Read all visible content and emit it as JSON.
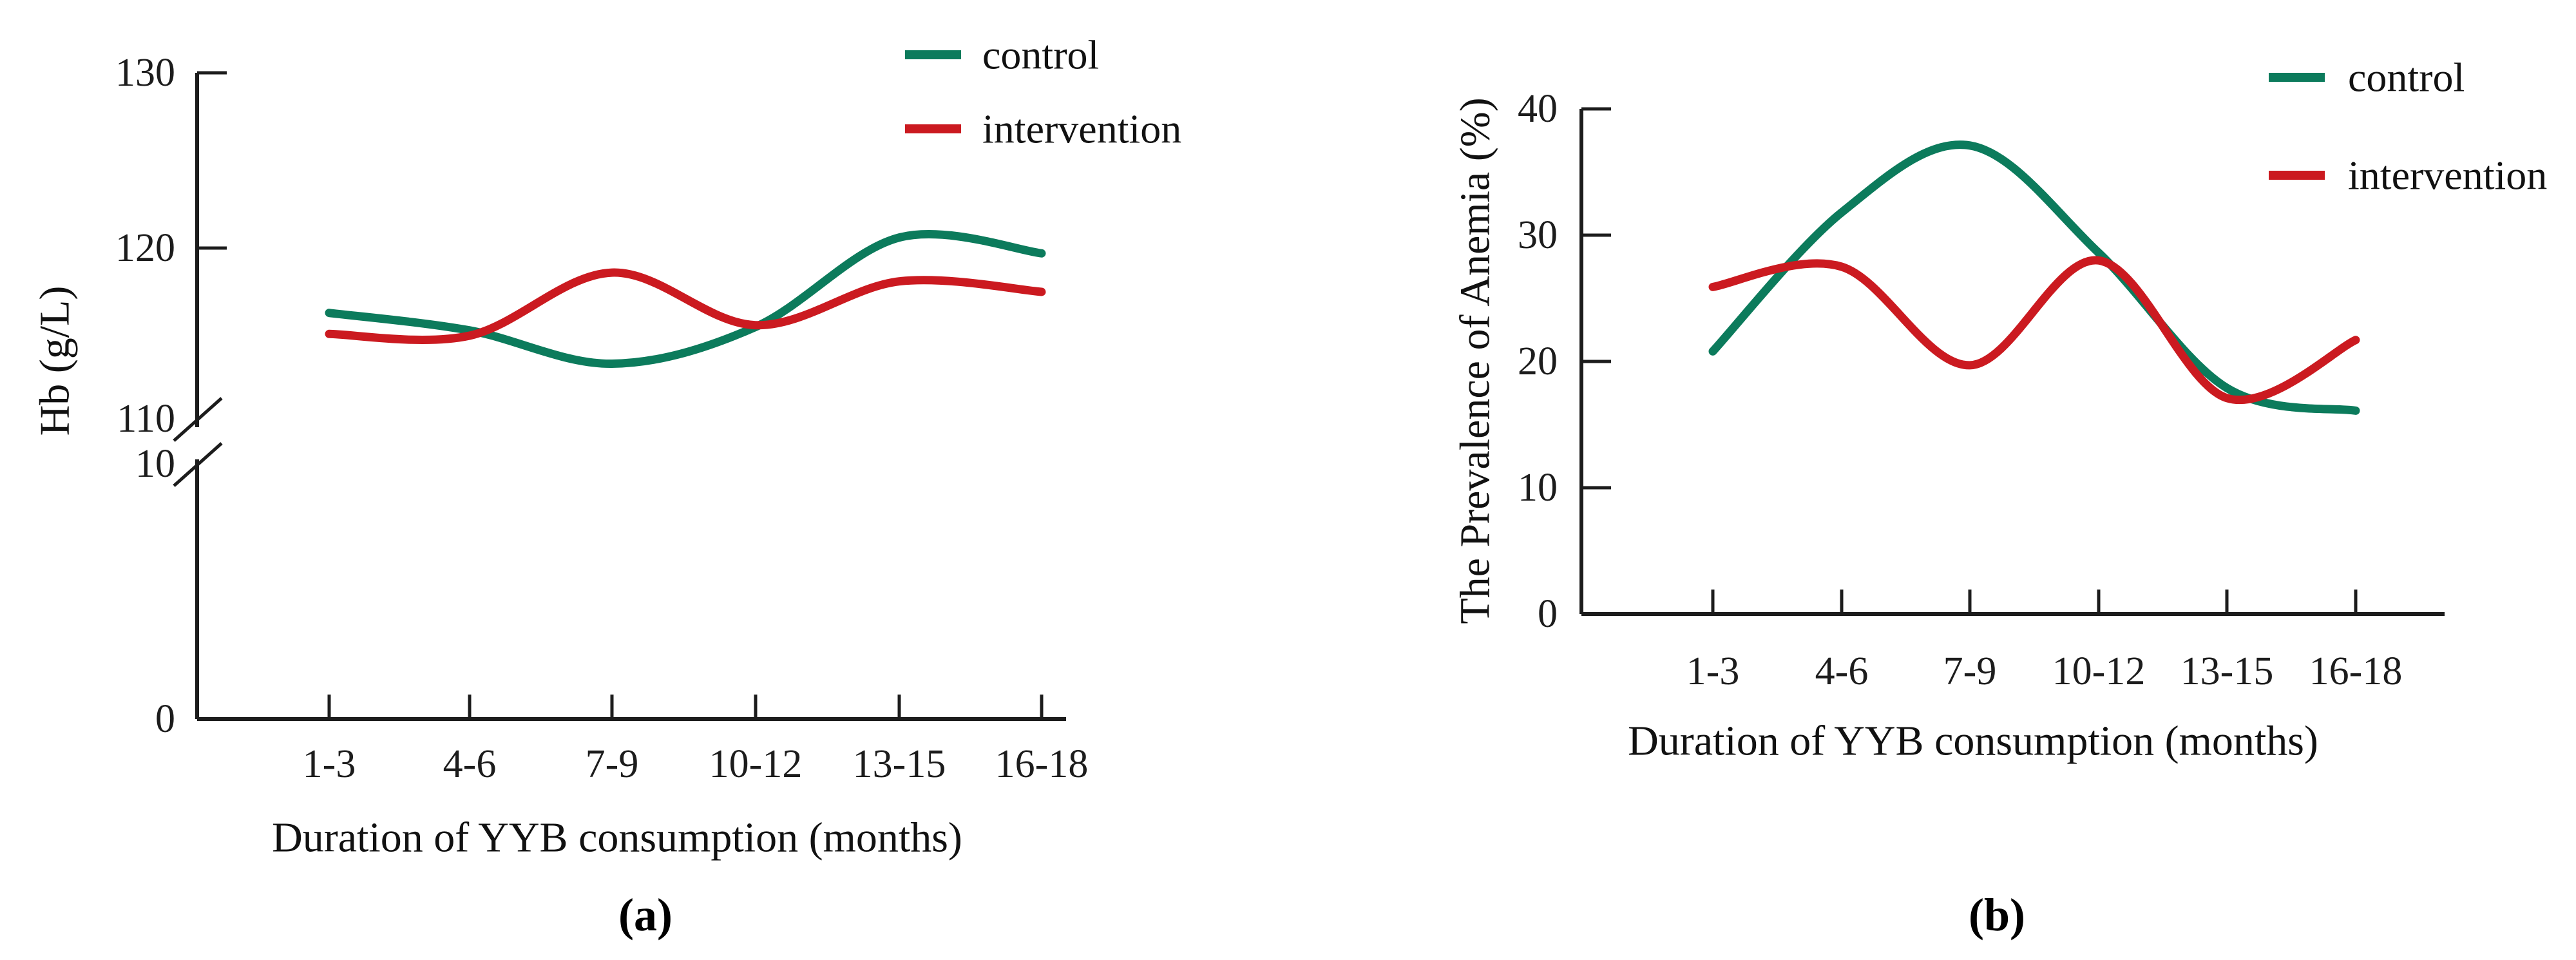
{
  "figure": {
    "caption_a": "(a)",
    "caption_b": "(b)"
  },
  "colors": {
    "control": "#0c7b5c",
    "intervention": "#cb1a20",
    "axis": "#1c1c1c"
  },
  "chart_data": [
    {
      "id": "a",
      "type": "line",
      "title": "",
      "xlabel": "Duration of YYB consumption (months)",
      "ylabel": "Hb (g/L)",
      "categories": [
        "1-3",
        "4-6",
        "7-9",
        "10-12",
        "13-15",
        "16-18"
      ],
      "y_tick_labels": [
        "130",
        "120",
        "110",
        "10",
        "0"
      ],
      "y_axis_break": true,
      "ylim_upper_segment": [
        110,
        130
      ],
      "ylim_full": [
        0,
        130
      ],
      "grid": false,
      "legend_position": "top-right",
      "series": [
        {
          "name": "control",
          "values": [
            116.3,
            115.3,
            113.4,
            115.5,
            120.6,
            119.7
          ]
        },
        {
          "name": "intervention",
          "values": [
            115.1,
            115.0,
            118.6,
            115.6,
            118.1,
            117.5
          ]
        }
      ]
    },
    {
      "id": "b",
      "type": "line",
      "title": "",
      "xlabel": "Duration of YYB consumption (months)",
      "ylabel": "The Prevalence of Anemia  (%)",
      "categories": [
        "1-3",
        "4-6",
        "7-9",
        "10-12",
        "13-15",
        "16-18"
      ],
      "y_tick_labels": [
        "40",
        "30",
        "20",
        "10",
        "0"
      ],
      "y_axis_break": false,
      "ylim_full": [
        0,
        40
      ],
      "grid": false,
      "legend_position": "top-right",
      "series": [
        {
          "name": "control",
          "values": [
            20.8,
            31.8,
            37.1,
            28.6,
            17.9,
            16.1
          ]
        },
        {
          "name": "intervention",
          "values": [
            25.9,
            27.5,
            19.7,
            28.0,
            17.1,
            21.7
          ]
        }
      ]
    }
  ],
  "legend": {
    "control_label": "control",
    "intervention_label": "intervention"
  }
}
